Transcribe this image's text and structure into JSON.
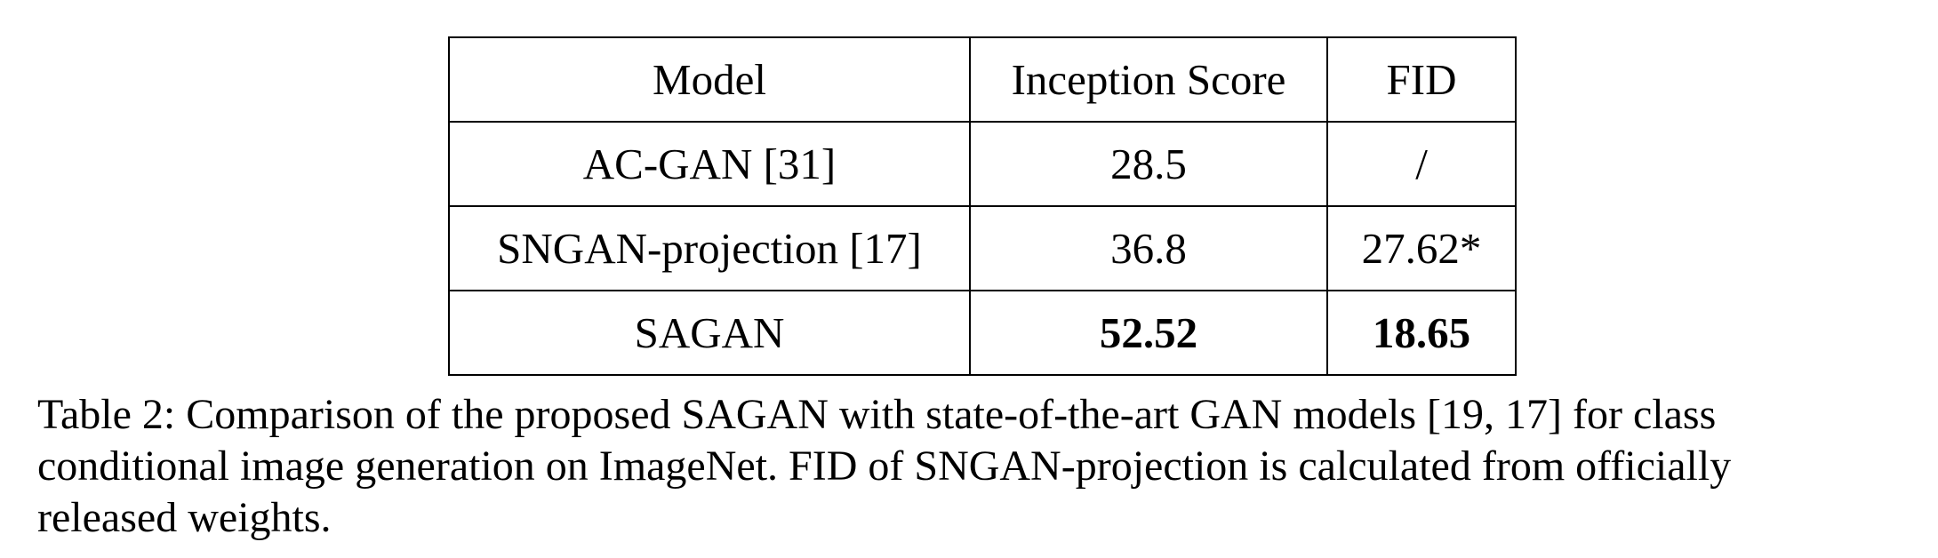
{
  "chart_data": {
    "type": "table",
    "columns": [
      "Model",
      "Inception Score",
      "FID"
    ],
    "rows": [
      [
        "AC-GAN [31]",
        "28.5",
        "/"
      ],
      [
        "SNGAN-projection [17]",
        "36.8",
        "27.62*"
      ],
      [
        "SAGAN",
        "52.52",
        "18.65"
      ]
    ],
    "bold_cells": [
      [
        2,
        1
      ],
      [
        2,
        2
      ]
    ]
  },
  "caption": "Table 2: Comparison of the proposed SAGAN with state-of-the-art GAN models [19, 17] for class\nconditional image generation on ImageNet. FID of SNGAN-projection is calculated from officially\nreleased weights."
}
